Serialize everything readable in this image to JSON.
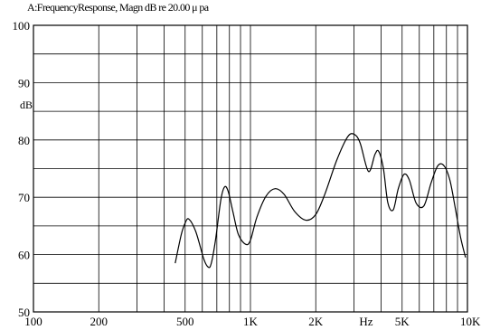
{
  "chart_data": {
    "type": "line",
    "title": "A:FrequencyResponse,  Magn dB re 20.00 μ pa",
    "ylabel": "dB",
    "x_unit_label": "Hz",
    "xscale": "log",
    "xlim": [
      100,
      10000
    ],
    "ylim": [
      50,
      100
    ],
    "grid": true,
    "y_ticks": [
      100,
      90,
      80,
      70,
      60,
      50
    ],
    "x_ticks": [
      {
        "value": 100,
        "label": "100"
      },
      {
        "value": 200,
        "label": "200"
      },
      {
        "value": 500,
        "label": "500"
      },
      {
        "value": 1000,
        "label": "1K"
      },
      {
        "value": 2000,
        "label": "2K"
      },
      {
        "value": 5000,
        "label": "5K"
      },
      {
        "value": 10000,
        "label": "10K"
      }
    ],
    "series": [
      {
        "x": [
          450,
          480,
          500,
          520,
          560,
          610,
          640,
          660,
          690,
          730,
          760,
          790,
          830,
          880,
          950,
          1000,
          1070,
          1180,
          1300,
          1430,
          1600,
          1800,
          2000,
          2200,
          2500,
          2800,
          3000,
          3200,
          3500,
          3750,
          3900,
          4100,
          4300,
          4550,
          4800,
          5100,
          5400,
          5800,
          6300,
          6800,
          7300,
          7800,
          8300,
          8800,
          9300,
          9800
        ],
        "values": [
          58.5,
          63.5,
          65.5,
          66.2,
          64.0,
          59.2,
          57.8,
          58.5,
          62.5,
          69.5,
          71.8,
          71.0,
          67.5,
          63.5,
          61.8,
          62.5,
          66.5,
          70.2,
          71.5,
          70.5,
          67.5,
          66.0,
          67.0,
          70.5,
          76.5,
          80.5,
          81.0,
          79.5,
          74.5,
          77.5,
          78.0,
          75.0,
          69.0,
          67.8,
          71.5,
          74.0,
          73.0,
          69.0,
          68.5,
          72.5,
          75.5,
          75.5,
          73.0,
          68.0,
          63.0,
          59.5
        ]
      }
    ]
  }
}
